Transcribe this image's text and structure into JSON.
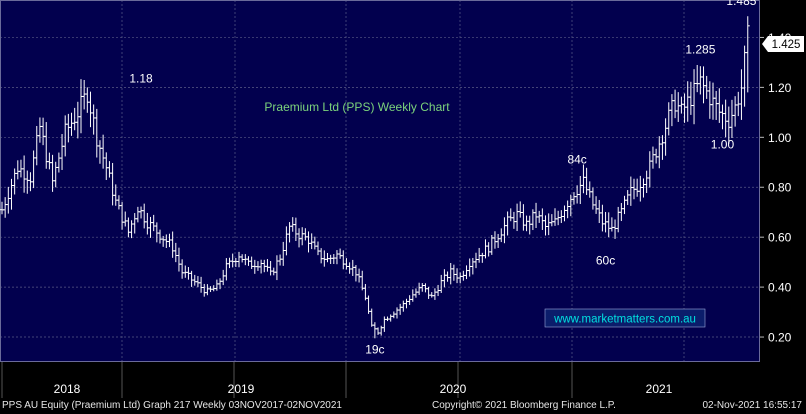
{
  "chart_data": {
    "type": "ohlc",
    "title": "Praemium Ltd (PPS) Weekly Chart",
    "ylim": [
      0.1,
      1.55
    ],
    "y_ticks": [
      "0.20",
      "0.40",
      "0.60",
      "0.80",
      "1.00",
      "1.20",
      "1.40"
    ],
    "x_labels": [
      "2018",
      "2019",
      "2020",
      "2021"
    ],
    "last_price": "1.425",
    "watermark": "www.marketmatters.com.au",
    "annotations": [
      {
        "text": "1.18",
        "week": 44,
        "y": 1.22
      },
      {
        "text": "19c",
        "week": 118,
        "y": 0.135
      },
      {
        "text": "84c",
        "week": 182,
        "y": 0.895
      },
      {
        "text": "60c",
        "week": 191,
        "y": 0.49
      },
      {
        "text": "1.285",
        "week": 221,
        "y": 1.335
      },
      {
        "text": "1.00",
        "week": 228,
        "y": 0.955
      },
      {
        "text": "1.485",
        "week": 234,
        "y": 1.53
      }
    ],
    "anchors": [
      [
        0,
        0.71
      ],
      [
        5,
        0.88
      ],
      [
        9,
        0.84
      ],
      [
        12,
        1.04
      ],
      [
        16,
        0.82
      ],
      [
        20,
        1.02
      ],
      [
        24,
        1.1
      ],
      [
        27,
        1.18
      ],
      [
        30,
        1.0
      ],
      [
        33,
        0.88
      ],
      [
        36,
        0.74
      ],
      [
        40,
        0.62
      ],
      [
        43,
        0.72
      ],
      [
        46,
        0.66
      ],
      [
        50,
        0.61
      ],
      [
        54,
        0.56
      ],
      [
        57,
        0.46
      ],
      [
        61,
        0.42
      ],
      [
        65,
        0.38
      ],
      [
        68,
        0.4
      ],
      [
        71,
        0.48
      ],
      [
        75,
        0.53
      ],
      [
        78,
        0.49
      ],
      [
        82,
        0.5
      ],
      [
        85,
        0.45
      ],
      [
        88,
        0.52
      ],
      [
        91,
        0.64
      ],
      [
        94,
        0.61
      ],
      [
        97,
        0.59
      ],
      [
        100,
        0.53
      ],
      [
        103,
        0.51
      ],
      [
        106,
        0.53
      ],
      [
        109,
        0.5
      ],
      [
        112,
        0.46
      ],
      [
        115,
        0.36
      ],
      [
        117,
        0.24
      ],
      [
        119,
        0.22
      ],
      [
        121,
        0.27
      ],
      [
        124,
        0.3
      ],
      [
        127,
        0.33
      ],
      [
        130,
        0.37
      ],
      [
        133,
        0.4
      ],
      [
        136,
        0.36
      ],
      [
        139,
        0.42
      ],
      [
        142,
        0.46
      ],
      [
        145,
        0.44
      ],
      [
        148,
        0.5
      ],
      [
        151,
        0.53
      ],
      [
        154,
        0.56
      ],
      [
        157,
        0.61
      ],
      [
        160,
        0.66
      ],
      [
        163,
        0.69
      ],
      [
        166,
        0.65
      ],
      [
        169,
        0.69
      ],
      [
        172,
        0.64
      ],
      [
        175,
        0.66
      ],
      [
        178,
        0.72
      ],
      [
        181,
        0.78
      ],
      [
        184,
        0.82
      ],
      [
        187,
        0.73
      ],
      [
        190,
        0.66
      ],
      [
        193,
        0.63
      ],
      [
        196,
        0.7
      ],
      [
        199,
        0.78
      ],
      [
        202,
        0.82
      ],
      [
        205,
        0.88
      ],
      [
        208,
        0.98
      ],
      [
        211,
        1.08
      ],
      [
        213,
        1.14
      ],
      [
        215,
        1.1
      ],
      [
        218,
        1.16
      ],
      [
        221,
        1.22
      ],
      [
        224,
        1.16
      ],
      [
        227,
        1.1
      ],
      [
        230,
        1.07
      ],
      [
        232,
        1.12
      ],
      [
        234,
        1.2
      ],
      [
        236,
        1.4
      ]
    ]
  },
  "footer": {
    "left": "PPS AU Equity (Praemium Ltd) Graph 217  Weekly 03NOV2017-02NOV2021",
    "center": "Copyright© 2021 Bloomberg Finance L.P.",
    "right": "02-Nov-2021 16:55:17"
  },
  "colors": {
    "plot_bg": "#02004e",
    "plot_border": "#6a6a9a",
    "grid": "#5a5a86",
    "bars": "#ffffff",
    "title": "#7cd37c",
    "watermark_bg": "#0b1d6b",
    "watermark_text": "#00e0e0",
    "price_tag_bg": "#ffffff",
    "price_tag_text": "#000000"
  }
}
